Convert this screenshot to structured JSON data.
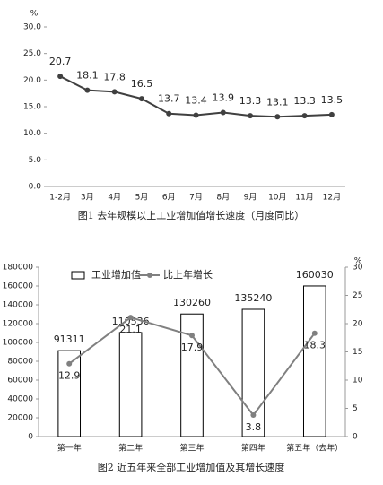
{
  "chart_data": [
    {
      "type": "line",
      "title": "图1 去年规模以上工业增加值增长速度（月度同比）",
      "y_label": "%",
      "categories": [
        "1-2月",
        "3月",
        "4月",
        "5月",
        "6月",
        "7月",
        "8月",
        "9月",
        "10月",
        "11月",
        "12月"
      ],
      "series": [
        {
          "color": "#404040",
          "values": [
            20.7,
            18.1,
            17.8,
            16.5,
            13.7,
            13.4,
            13.9,
            13.3,
            13.1,
            13.3,
            13.5
          ]
        }
      ],
      "ylim": [
        0,
        30
      ],
      "yticks": [
        {
          "value": 0,
          "label": "0.0"
        },
        {
          "value": 5,
          "label": "5.0"
        },
        {
          "value": 10,
          "label": "10.0"
        },
        {
          "value": 15,
          "label": "15.0"
        },
        {
          "value": 20,
          "label": "20.0"
        },
        {
          "value": 25,
          "label": "25.0"
        },
        {
          "value": 30,
          "label": "30.0"
        }
      ]
    },
    {
      "type": "combo",
      "title": "图2 近五年来全部工业增加值及其增长速度",
      "y2_label": "%",
      "categories": [
        "第一年",
        "第二年",
        "第三年",
        "第四年",
        "第五年（去年）"
      ],
      "series": [
        {
          "name": "工业增加值",
          "type": "bar",
          "color": "#000000",
          "values": [
            91311,
            110536,
            130260,
            135240,
            160030
          ]
        },
        {
          "name": "比上年增长",
          "type": "line",
          "axis": "y2",
          "color": "#808080",
          "values": [
            12.9,
            21.1,
            17.9,
            3.8,
            18.3
          ]
        }
      ],
      "ylim": [
        0,
        180000
      ],
      "yticks": [
        0,
        20000,
        40000,
        60000,
        80000,
        100000,
        120000,
        140000,
        160000,
        180000
      ],
      "y2lim": [
        0,
        30
      ],
      "y2ticks": [
        0,
        5,
        10,
        15,
        20,
        25,
        30
      ]
    }
  ]
}
